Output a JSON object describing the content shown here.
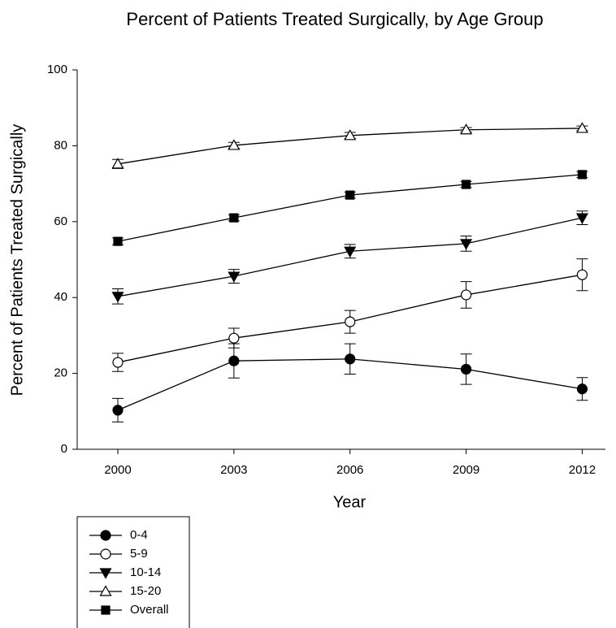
{
  "chart_data": {
    "type": "line",
    "title": "Percent of Patients Treated Surgically, by Age Group",
    "x_label": "Year",
    "y_label": "Percent of Patients Treated Surgically",
    "x": [
      2000,
      2003,
      2006,
      2009,
      2012
    ],
    "xlim": [
      1998.95,
      2012.6
    ],
    "xticks": [
      2000,
      2003,
      2006,
      2009,
      2012
    ],
    "ylim": [
      0,
      100
    ],
    "yticks": [
      0,
      20,
      40,
      60,
      80,
      100
    ],
    "series": [
      {
        "name": "0-4",
        "color": "#000000",
        "marker": "circle",
        "marker_fill": "filled",
        "values": [
          10.3,
          23.3,
          23.8,
          21.1,
          15.9
        ],
        "errors": [
          3.1,
          4.5,
          4.0,
          4.0,
          3.0
        ]
      },
      {
        "name": "5-9",
        "color": "#000000",
        "marker": "circle",
        "marker_fill": "open",
        "values": [
          22.9,
          29.3,
          33.6,
          40.7,
          46.0
        ],
        "errors": [
          2.4,
          2.6,
          3.0,
          3.5,
          4.2
        ]
      },
      {
        "name": "10-14",
        "color": "#000000",
        "marker": "triangle-down",
        "marker_fill": "filled",
        "values": [
          40.3,
          45.6,
          52.2,
          54.2,
          61.0
        ],
        "errors": [
          2.0,
          1.8,
          1.8,
          2.0,
          1.8
        ]
      },
      {
        "name": "15-20",
        "color": "#000000",
        "marker": "triangle-up",
        "marker_fill": "open",
        "values": [
          75.2,
          80.1,
          82.7,
          84.2,
          84.6
        ],
        "errors": [
          1.2,
          0.8,
          0.8,
          0.6,
          0.6
        ]
      },
      {
        "name": "Overall",
        "color": "#000000",
        "marker": "square",
        "marker_fill": "filled",
        "values": [
          54.8,
          61.0,
          67.0,
          69.8,
          72.4
        ],
        "errors": [
          0.9,
          0.8,
          0.8,
          0.8,
          0.8
        ]
      }
    ]
  }
}
